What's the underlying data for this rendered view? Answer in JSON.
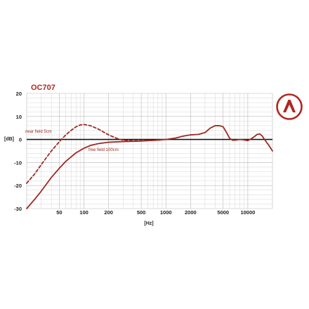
{
  "chart_data": {
    "type": "line",
    "title": "OC707",
    "xlabel": "[Hz]",
    "ylabel": "[dB]",
    "xscale": "log",
    "xlim": [
      20,
      20000
    ],
    "ylim": [
      -30,
      20
    ],
    "x_ticks": [
      50,
      100,
      200,
      500,
      1000,
      2000,
      5000,
      10000
    ],
    "y_ticks": [
      20,
      10,
      0,
      -10,
      -20,
      -30
    ],
    "grid": true,
    "series": [
      {
        "name": "near field 5cm",
        "style": "dashed",
        "x": [
          20,
          25,
          30,
          40,
          50,
          60,
          70,
          80,
          90,
          100,
          120,
          150,
          200,
          250,
          300,
          400,
          500,
          600,
          800,
          1000
        ],
        "y": [
          -19,
          -15,
          -11,
          -5,
          -1,
          2,
          4,
          5.5,
          6.3,
          6.5,
          6,
          4.5,
          2,
          0.5,
          -0.3,
          -0.6,
          -0.6,
          -0.5,
          -0.3,
          0
        ]
      },
      {
        "name": "free field 100cm",
        "style": "solid",
        "x": [
          20,
          25,
          30,
          40,
          50,
          60,
          70,
          80,
          100,
          120,
          150,
          200,
          300,
          400,
          500,
          700,
          1000,
          1300,
          1600,
          2000,
          2500,
          3000,
          3500,
          4000,
          4500,
          5000,
          5500,
          6000,
          6500,
          7000,
          8000,
          9000,
          10000,
          11000,
          12000,
          13000,
          14000,
          15000,
          16000,
          18000,
          20000
        ],
        "y": [
          -30,
          -26,
          -22.5,
          -16.5,
          -12.5,
          -9.5,
          -7.5,
          -5.8,
          -3.8,
          -2.6,
          -1.8,
          -1.2,
          -0.9,
          -0.8,
          -0.7,
          -0.4,
          0,
          0.6,
          1.4,
          2,
          2.2,
          3,
          5,
          6,
          6,
          5.5,
          3,
          0.5,
          -0.3,
          -0.3,
          0,
          -0.2,
          -0.5,
          0.3,
          1.2,
          2.2,
          2.4,
          1.5,
          0,
          -2.5,
          -5
        ]
      }
    ],
    "annotations": [
      "near field 5cm",
      "free field 100cm"
    ],
    "colors": {
      "curve": "#9e2a22",
      "accent": "#b3261e"
    }
  },
  "logo": {
    "icon": "triangle-a-logo-icon"
  }
}
